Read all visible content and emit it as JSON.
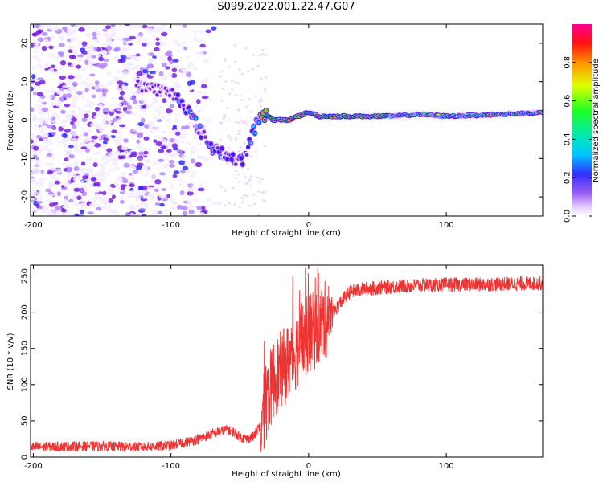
{
  "title": "S099.2022.001.22.47.G07",
  "chart_data": [
    {
      "type": "heatmap",
      "xlabel": "Height of straight line (km)",
      "ylabel": "Frequency (Hz)",
      "xlim": [
        -202,
        170
      ],
      "ylim": [
        -25,
        25
      ],
      "xticks": [
        -200,
        -100,
        0,
        100
      ],
      "yticks": [
        -20,
        -10,
        0,
        10,
        20
      ],
      "colorbar": {
        "label": "Normalized spectral amplitude",
        "range": [
          0,
          1
        ],
        "ticks": [
          "0.0",
          "0.2",
          "0.4",
          "0.6",
          "0.8"
        ]
      },
      "ridge": [
        {
          "x": -120,
          "f": 9
        },
        {
          "x": -110,
          "f": 8
        },
        {
          "x": -100,
          "f": 7
        },
        {
          "x": -95,
          "f": 6
        },
        {
          "x": -90,
          "f": 4
        },
        {
          "x": -85,
          "f": 1
        },
        {
          "x": -80,
          "f": -2
        },
        {
          "x": -75,
          "f": -5
        },
        {
          "x": -70,
          "f": -7
        },
        {
          "x": -65,
          "f": -8
        },
        {
          "x": -60,
          "f": -9
        },
        {
          "x": -55,
          "f": -10
        },
        {
          "x": -50,
          "f": -11
        },
        {
          "x": -47,
          "f": -10
        },
        {
          "x": -44,
          "f": -7
        },
        {
          "x": -40,
          "f": -3
        },
        {
          "x": -37,
          "f": 0
        },
        {
          "x": -34,
          "f": 2
        },
        {
          "x": -30,
          "f": 1
        },
        {
          "x": -25,
          "f": 0
        },
        {
          "x": -15,
          "f": 0
        },
        {
          "x": -8,
          "f": 1
        },
        {
          "x": 0,
          "f": 2
        },
        {
          "x": 8,
          "f": 1
        },
        {
          "x": 20,
          "f": 1
        },
        {
          "x": 60,
          "f": 1
        },
        {
          "x": 80,
          "f": 1.5
        },
        {
          "x": 100,
          "f": 1
        },
        {
          "x": 140,
          "f": 1.5
        },
        {
          "x": 170,
          "f": 2
        }
      ]
    },
    {
      "type": "line",
      "xlabel": "Height of straight line (km)",
      "ylabel": "SNR (10 * v/v)",
      "xlim": [
        -202,
        170
      ],
      "ylim": [
        0,
        265
      ],
      "xticks": [
        -200,
        -100,
        0,
        100
      ],
      "yticks": [
        0,
        50,
        100,
        150,
        200,
        250
      ],
      "color": "#ee3333",
      "series": [
        {
          "name": "SNR envelope",
          "x": [
            -202,
            -160,
            -120,
            -100,
            -90,
            -80,
            -70,
            -60,
            -55,
            -50,
            -45,
            -40,
            -35,
            -30,
            -25,
            -20,
            -15,
            -10,
            -5,
            0,
            5,
            10,
            15,
            20,
            25,
            30,
            40,
            60,
            80,
            100,
            120,
            140,
            170
          ],
          "y": [
            14,
            15,
            14,
            16,
            20,
            25,
            32,
            38,
            35,
            28,
            25,
            28,
            45,
            80,
            110,
            120,
            130,
            145,
            160,
            170,
            175,
            185,
            195,
            205,
            218,
            228,
            232,
            235,
            237,
            238,
            238,
            239,
            240
          ]
        }
      ]
    }
  ]
}
